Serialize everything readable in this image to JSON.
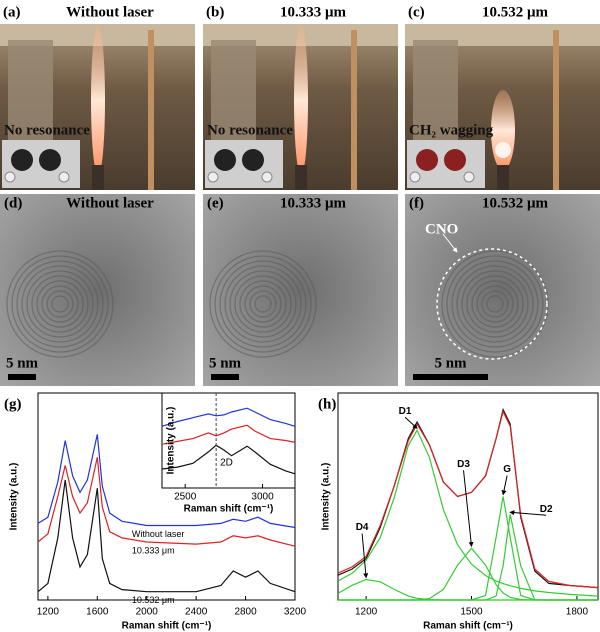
{
  "photo_panels": [
    {
      "label": "(a)",
      "title": "Without laser",
      "note": "No resonance"
    },
    {
      "label": "(b)",
      "title": "10.333 μm",
      "note": "No resonance"
    },
    {
      "label": "(c)",
      "title": "10.532 μm",
      "note": "CH₂ wagging"
    }
  ],
  "tem_panels": [
    {
      "label": "(d)",
      "title": "Without laser",
      "scale": "5 nm"
    },
    {
      "label": "(e)",
      "title": "10.333 μm",
      "scale": "5 nm"
    },
    {
      "label": "(f)",
      "title": "10.532 μm",
      "scale": "5 nm",
      "annotation": "CNO"
    }
  ],
  "chart_data": [
    {
      "type": "line",
      "label": "(g)",
      "xlabel": "Raman shift (cm⁻¹)",
      "ylabel": "Intensity (a.u.)",
      "x": [
        1120,
        1200,
        1280,
        1340,
        1400,
        1460,
        1520,
        1600,
        1640,
        1700,
        1800,
        2000,
        2400,
        2600,
        2700,
        2800,
        2900,
        3000,
        3200
      ],
      "series": [
        {
          "name": "Without laser",
          "color": "#2233dd",
          "values": [
            37,
            40,
            57,
            77,
            60,
            52,
            58,
            80,
            55,
            42,
            38,
            36,
            36,
            37,
            39,
            38,
            40,
            37,
            35
          ]
        },
        {
          "name": "10.333 μm",
          "color": "#dd2222",
          "values": [
            28,
            32,
            50,
            65,
            50,
            42,
            47,
            69,
            45,
            33,
            30,
            28,
            27,
            28,
            31,
            30,
            31,
            29,
            26
          ]
        },
        {
          "name": "10.532 μm",
          "color": "#111111",
          "values": [
            4,
            8,
            30,
            58,
            30,
            16,
            22,
            54,
            20,
            8,
            5,
            4,
            4,
            7,
            14,
            11,
            14,
            8,
            4
          ]
        }
      ],
      "xlim": [
        1120,
        3200
      ],
      "xticks": [
        1200,
        1600,
        2000,
        2400,
        2800,
        3200
      ],
      "ylim": [
        0,
        100
      ],
      "inset": {
        "type": "line",
        "xlabel": "Raman shift (cm⁻¹)",
        "ylabel": "Intensity (a.u.)",
        "x": [
          2350,
          2450,
          2550,
          2650,
          2700,
          2750,
          2800,
          2900,
          2950,
          3050,
          3150,
          3210
        ],
        "series": [
          {
            "color": "#2233dd",
            "values": [
              65,
              70,
              74,
              78,
              76,
              77,
              80,
              84,
              80,
              72,
              68,
              65
            ]
          },
          {
            "color": "#dd2222",
            "values": [
              46,
              49,
              52,
              58,
              55,
              58,
              62,
              66,
              60,
              52,
              50,
              48
            ]
          },
          {
            "color": "#111111",
            "values": [
              20,
              22,
              26,
              38,
              45,
              40,
              34,
              44,
              38,
              25,
              18,
              15
            ]
          }
        ],
        "xlim": [
          2350,
          3210
        ],
        "xticks": [
          2500,
          3000
        ],
        "ylim": [
          0,
          100
        ],
        "marker": {
          "value": 2700,
          "label": "2D"
        }
      }
    },
    {
      "type": "line",
      "label": "(h)",
      "xlabel": "Raman shift (cm⁻¹)",
      "ylabel": "Intensity (a.u.)",
      "x": [
        1120,
        1160,
        1200,
        1240,
        1280,
        1320,
        1345,
        1380,
        1420,
        1460,
        1500,
        1540,
        1570,
        1590,
        1610,
        1640,
        1680,
        1720,
        1780,
        1860
      ],
      "series": [
        {
          "color": "#111111",
          "values": [
            12,
            15,
            20,
            35,
            55,
            78,
            86,
            75,
            57,
            50,
            52,
            60,
            78,
            92,
            85,
            40,
            14,
            8,
            7,
            6
          ]
        },
        {
          "color": "#dd2222",
          "values": [
            13,
            16,
            21,
            36,
            55,
            77,
            85,
            75,
            57,
            50,
            52,
            60,
            78,
            91,
            84,
            41,
            15,
            9,
            7,
            6
          ]
        },
        {
          "name": "D1",
          "color": "#33cc33",
          "values": [
            9.2,
            12.9,
            19.2,
            30.1,
            49.4,
            74.7,
            82,
            68.9,
            43.6,
            26.7,
            17.3,
            11.8,
            9.2,
            7.9,
            6.9,
            5.6,
            4.4,
            3.6,
            2.7,
            1.9
          ]
        },
        {
          "name": "D3",
          "color": "#33cc33",
          "values": [
            0,
            0,
            0,
            0,
            0,
            0,
            0,
            0.7,
            5.1,
            16.8,
            25,
            16.8,
            7.5,
            3.4,
            1.3,
            0.2,
            0,
            0,
            0,
            0
          ]
        },
        {
          "name": "G",
          "color": "#33cc33",
          "values": [
            0,
            0,
            0,
            0,
            0,
            0,
            0,
            0,
            0,
            0,
            0,
            2.2,
            30.3,
            50,
            30.3,
            2.2,
            0,
            0,
            0,
            0
          ]
        },
        {
          "name": "D2",
          "color": "#33cc33",
          "values": [
            0,
            0,
            0,
            0,
            0,
            0,
            0,
            0,
            0,
            0,
            0,
            0,
            1.9,
            16.5,
            41.4,
            16.5,
            0.1,
            0,
            0,
            0
          ]
        },
        {
          "name": "D4",
          "color": "#33cc33",
          "values": [
            3.2,
            7.1,
            9.9,
            8.8,
            5.1,
            1.9,
            0.8,
            0.2,
            0,
            0,
            0,
            0,
            0,
            0,
            0,
            0,
            0,
            0,
            0,
            0
          ]
        }
      ],
      "xlim": [
        1120,
        1860
      ],
      "xticks": [
        1200,
        1500,
        1800
      ],
      "ylim": [
        0,
        100
      ]
    }
  ]
}
